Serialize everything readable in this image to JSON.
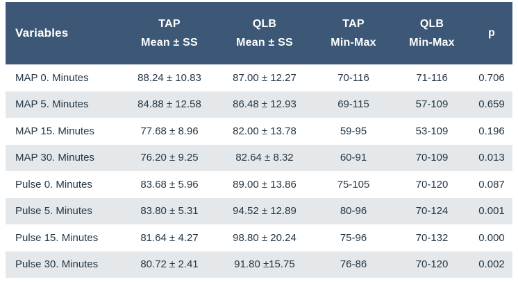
{
  "table": {
    "columns": [
      {
        "id": "variables",
        "label": "Variables"
      },
      {
        "id": "tap_mean",
        "label_line1": "TAP",
        "label_line2": "Mean ± SS"
      },
      {
        "id": "qlb_mean",
        "label_line1": "QLB",
        "label_line2": "Mean ± SS"
      },
      {
        "id": "tap_minmax",
        "label_line1": "TAP",
        "label_line2": "Min-Max"
      },
      {
        "id": "qlb_minmax",
        "label_line1": "QLB",
        "label_line2": "Min-Max"
      },
      {
        "id": "p",
        "label": "p"
      }
    ],
    "rows": [
      [
        "MAP 0. Minutes",
        "88.24 ± 10.83",
        "87.00 ± 12.27",
        "70-116",
        "71-116",
        "0.706"
      ],
      [
        "MAP 5. Minutes",
        "84.88 ± 12.58",
        "86.48 ± 12.93",
        "69-115",
        "57-109",
        "0.659"
      ],
      [
        "MAP 15. Minutes",
        "77.68 ± 8.96",
        "82.00 ± 13.78",
        "59-95",
        "53-109",
        "0.196"
      ],
      [
        "MAP 30. Minutes",
        "76.20 ± 9.25",
        "82.64 ± 8.32",
        "60-91",
        "70-109",
        "0.013"
      ],
      [
        "Pulse 0. Minutes",
        "83.68 ± 5.96",
        "89.00 ± 13.86",
        "75-105",
        "70-120",
        "0.087"
      ],
      [
        "Pulse 5. Minutes",
        "83.80 ± 5.31",
        "94.52 ± 12.89",
        "80-96",
        "70-124",
        "0.001"
      ],
      [
        "Pulse 15. Minutes",
        "81.64 ± 4.27",
        "98.80 ± 20.24",
        "75-96",
        "70-132",
        "0.000"
      ],
      [
        "Pulse 30. Minutes",
        "80.72 ± 2.41",
        "91.80 ±15.75",
        "76-86",
        "70-120",
        "0.002"
      ]
    ]
  },
  "colors": {
    "header_bg": "#3c5876",
    "header_text": "#ffffff",
    "row_bg": "#ffffff",
    "row_alt_bg": "#e4e8ea",
    "body_text": "#253746"
  }
}
